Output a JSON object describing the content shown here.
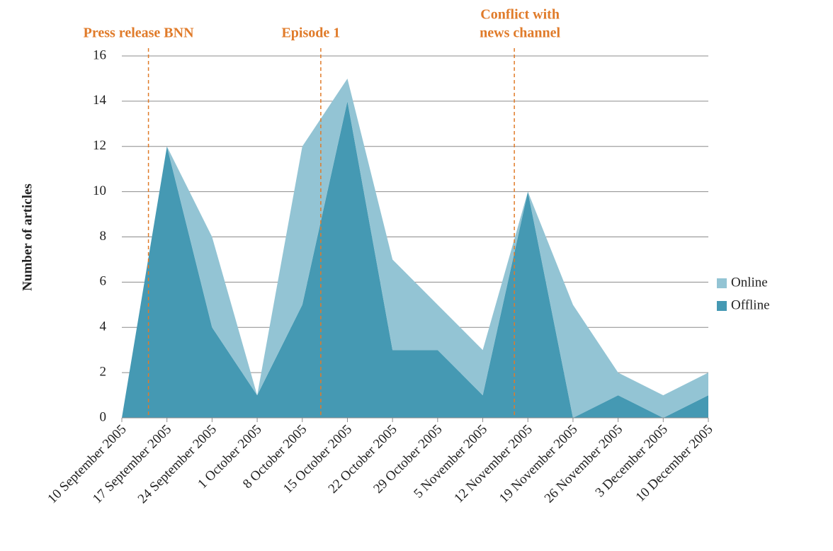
{
  "chart_data": {
    "type": "stacked_area",
    "y_label": "Number of articles",
    "categories": [
      "10 September 2005",
      "17 September 2005",
      "24 September 2005",
      "1 October 2005",
      "8 October 2005",
      "15 October 2005",
      "22 October 2005",
      "29 October 2005",
      "5 November 2005",
      "12 November 2005",
      "19 November 2005",
      "26 November 2005",
      "3 December 2005",
      "10 December 2005"
    ],
    "series": [
      {
        "name": "Offline",
        "color": "#4599b3",
        "values": [
          0,
          12,
          4,
          1,
          5,
          14,
          3,
          3,
          1,
          10,
          0,
          1,
          0,
          1
        ]
      },
      {
        "name": "Online",
        "color": "#93c4d4",
        "values": [
          0,
          0,
          4,
          0,
          7,
          1,
          4,
          2,
          2,
          0,
          5,
          1,
          1,
          1
        ]
      }
    ],
    "ylim": [
      0,
      16
    ],
    "yticks": [
      0,
      2,
      4,
      6,
      8,
      10,
      12,
      14,
      16
    ],
    "grid": true,
    "legend": "right",
    "annotations": [
      {
        "lines": [
          "Press release BNN"
        ]
      },
      {
        "lines": [
          "Episode 1"
        ]
      },
      {
        "lines": [
          "Conflict with",
          "news channel"
        ]
      }
    ]
  }
}
